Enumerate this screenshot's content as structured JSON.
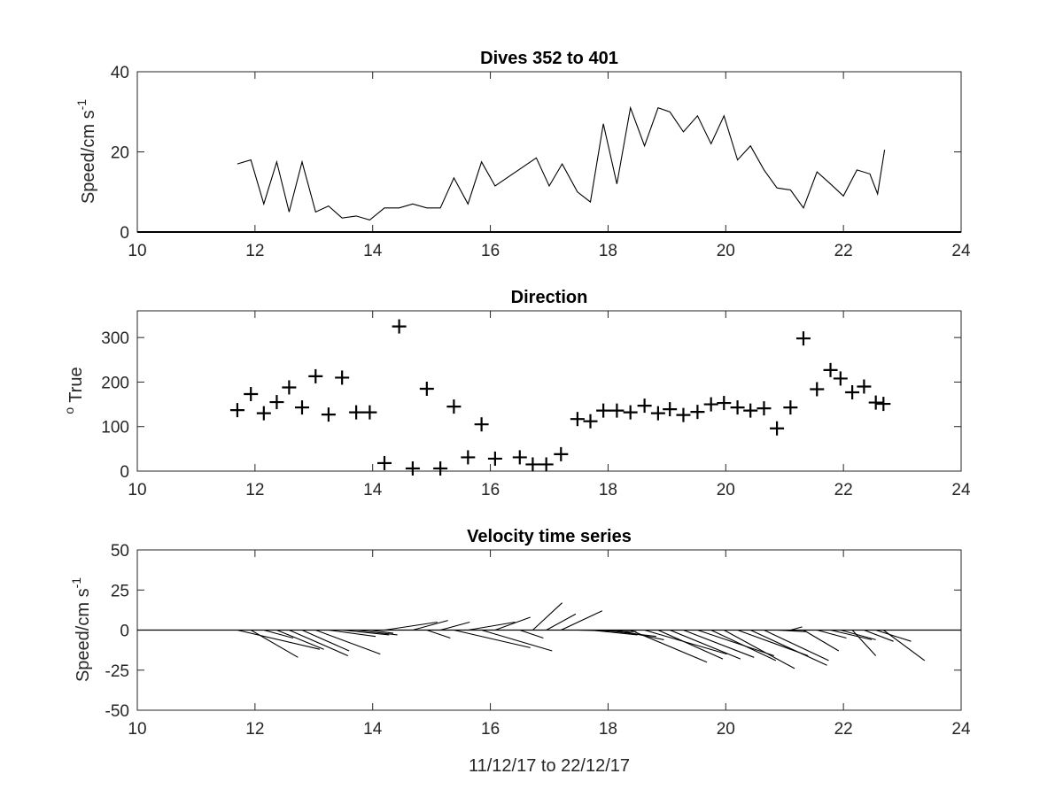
{
  "chart_data": [
    {
      "type": "line",
      "title": "Dives 352 to 401",
      "ylabel_main": "Speed/cm s",
      "ylabel_sup": "-1",
      "xlim": [
        10,
        24
      ],
      "ylim": [
        0,
        40
      ],
      "xticks": [
        "10",
        "12",
        "14",
        "16",
        "18",
        "20",
        "22",
        "24"
      ],
      "yticks": [
        "0",
        "20",
        "40"
      ],
      "zero_line": true,
      "series": [
        {
          "x": [
            11.7,
            11.93,
            12.15,
            12.37,
            12.58,
            12.8,
            13.03,
            13.25,
            13.48,
            13.72,
            13.95,
            14.2,
            14.45,
            14.68,
            14.92,
            15.15,
            15.38,
            15.62,
            15.85,
            16.08,
            16.78,
            17.0,
            17.22,
            17.48,
            17.7,
            17.92,
            18.15,
            18.38,
            18.62,
            18.85,
            19.05,
            19.28,
            19.52,
            19.75,
            19.97,
            20.2,
            20.42,
            20.65,
            20.87,
            21.1,
            21.32,
            21.55,
            21.78,
            22.0,
            22.23,
            22.45,
            22.58,
            22.7
          ],
          "values": [
            17,
            18,
            7,
            17.5,
            5,
            17.5,
            5,
            6.5,
            3.5,
            4,
            3,
            6,
            6,
            7,
            6,
            6,
            13.5,
            7,
            17.5,
            11.5,
            18.5,
            11.5,
            17,
            10,
            7.5,
            27,
            12,
            31,
            21.5,
            31,
            30,
            25,
            29,
            22,
            29,
            18,
            21.5,
            15.5,
            11,
            10.5,
            6,
            15,
            12,
            9,
            15.5,
            14.5,
            9.5,
            20.5
          ]
        }
      ]
    },
    {
      "type": "scatter",
      "title": "Direction",
      "ylabel_main": "True",
      "ylabel_sup": "o",
      "xlim": [
        10,
        24
      ],
      "ylim": [
        0,
        360
      ],
      "xticks": [
        "10",
        "12",
        "14",
        "16",
        "18",
        "20",
        "22",
        "24"
      ],
      "yticks": [
        "0",
        "100",
        "200",
        "300"
      ],
      "marker": "+",
      "series": [
        {
          "x": [
            11.7,
            11.93,
            12.15,
            12.37,
            12.58,
            12.8,
            13.03,
            13.25,
            13.48,
            13.72,
            13.95,
            14.2,
            14.45,
            14.68,
            14.92,
            15.15,
            15.38,
            15.62,
            15.85,
            16.08,
            16.5,
            16.72,
            16.95,
            17.2,
            17.48,
            17.7,
            17.92,
            18.15,
            18.38,
            18.62,
            18.85,
            19.05,
            19.28,
            19.52,
            19.75,
            19.97,
            20.2,
            20.42,
            20.65,
            20.87,
            21.1,
            21.32,
            21.55,
            21.78,
            21.95,
            22.15,
            22.35,
            22.55,
            22.68
          ],
          "values": [
            137,
            173,
            130,
            155,
            188,
            143,
            213,
            127,
            210,
            132,
            132,
            18,
            325,
            6,
            185,
            6,
            145,
            31,
            105,
            28,
            31,
            15,
            15,
            38,
            117,
            112,
            136,
            136,
            132,
            147,
            130,
            139,
            126,
            133,
            150,
            153,
            143,
            136,
            141,
            96,
            143,
            298,
            184,
            227,
            208,
            177,
            190,
            154,
            151
          ]
        }
      ]
    },
    {
      "type": "line",
      "subtype": "stick-plot",
      "title": "Velocity time series",
      "ylabel_main": "Speed/cm s",
      "ylabel_sup": "-1",
      "xlabel": "11/12/17 to 22/12/17",
      "xlim": [
        10,
        24
      ],
      "ylim": [
        -50,
        50
      ],
      "xticks": [
        "10",
        "12",
        "14",
        "16",
        "18",
        "20",
        "22",
        "24"
      ],
      "yticks": [
        "-50",
        "-25",
        "0",
        "25",
        "50"
      ],
      "zero_line": true,
      "series": [
        {
          "x": [
            11.7,
            11.93,
            12.15,
            12.37,
            12.58,
            12.8,
            13.03,
            13.25,
            13.48,
            13.72,
            13.95,
            14.2,
            14.45,
            14.68,
            14.92,
            15.15,
            15.38,
            15.62,
            15.85,
            16.08,
            16.5,
            16.72,
            16.95,
            17.2,
            17.48,
            17.7,
            17.92,
            18.15,
            18.38,
            18.62,
            18.85,
            19.05,
            19.28,
            19.52,
            19.75,
            19.97,
            20.2,
            20.42,
            20.65,
            20.87,
            21.1,
            21.32,
            21.55,
            21.78,
            21.95,
            22.15,
            22.35,
            22.55,
            22.68
          ],
          "u": [
            1.4,
            0.8,
            0.5,
            0.8,
            1.0,
            0.8,
            1.1,
            0.8,
            0.8,
            0.7,
            0.4,
            0.9,
            0.0,
            0.6,
            0.4,
            0.5,
            1.3,
            0.8,
            1.2,
            0.6,
            0.4,
            0.5,
            0.5,
            0.7,
            1.0,
            0.8,
            0.9,
            0.8,
            1.3,
            1.4,
            1.1,
            1.2,
            1.2,
            1.3,
            1.1,
            1.2,
            1.2,
            1.3,
            1.1,
            0.5,
            0.2,
            0.6,
            0.5,
            0.7,
            0.6,
            0.4,
            0.5,
            0.6,
            0.7
          ],
          "v": [
            -12,
            -17,
            -5,
            -12,
            -16,
            -13,
            -15,
            -4,
            -3,
            -3,
            -2,
            5,
            0,
            6,
            -5,
            5,
            -11,
            5,
            -13,
            8,
            -5,
            17,
            10,
            12,
            -1,
            -3,
            -4,
            -6,
            -20,
            -15,
            -18,
            -18,
            -17,
            -16,
            -19,
            -24,
            -16,
            -22,
            -19,
            -1,
            2,
            -13,
            -5,
            -6,
            -6,
            -16,
            -7,
            -7,
            -19
          ]
        }
      ]
    }
  ]
}
